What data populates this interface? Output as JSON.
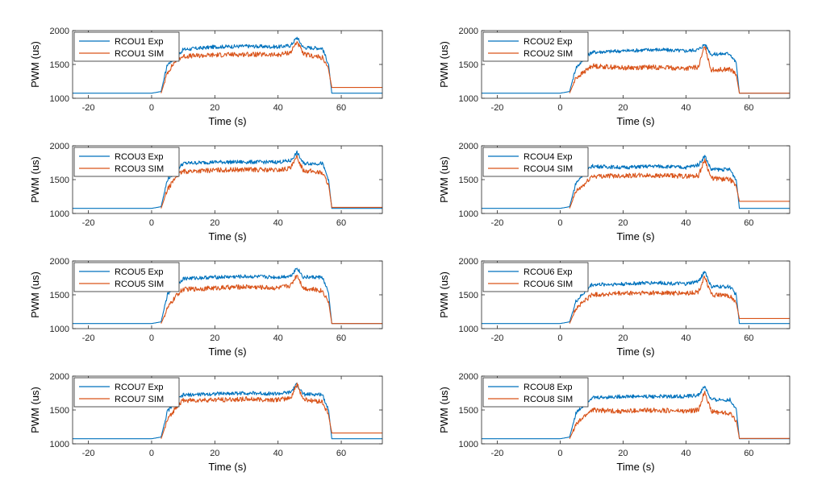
{
  "colors": {
    "exp": "#0072BD",
    "sim": "#D95319",
    "axis": "#262626"
  },
  "chart_data": [
    {
      "type": "line",
      "xlabel": "Time (s)",
      "ylabel": "PWM (us)",
      "xlim": [
        -25,
        73
      ],
      "ylim": [
        1000,
        2000
      ],
      "xticks": [
        "-20",
        "0",
        "20",
        "40",
        "60"
      ],
      "yticks": [
        "1000",
        "1500",
        "2000"
      ],
      "legend": "top-left",
      "series": [
        {
          "name": "RCOU1 Exp",
          "x": [
            -25,
            0,
            3,
            5,
            8,
            10,
            20,
            30,
            40,
            44,
            46,
            48,
            54,
            56,
            57,
            73
          ],
          "y": [
            1075,
            1075,
            1100,
            1500,
            1620,
            1720,
            1760,
            1770,
            1760,
            1780,
            1900,
            1750,
            1740,
            1500,
            1075,
            1075
          ]
        },
        {
          "name": "RCOU1 SIM",
          "x": [
            3,
            5,
            8,
            10,
            20,
            30,
            40,
            44,
            46,
            48,
            54,
            56,
            57,
            73
          ],
          "y": [
            1075,
            1380,
            1580,
            1620,
            1640,
            1650,
            1640,
            1680,
            1840,
            1650,
            1600,
            1420,
            1160,
            1160
          ]
        }
      ]
    },
    {
      "type": "line",
      "xlabel": "Time (s)",
      "ylabel": "PWM (us)",
      "xlim": [
        -25,
        73
      ],
      "ylim": [
        1000,
        2000
      ],
      "xticks": [
        "-20",
        "0",
        "20",
        "40",
        "60"
      ],
      "yticks": [
        "1000",
        "1500",
        "2000"
      ],
      "legend": "top-left",
      "series": [
        {
          "name": "RCOU2 Exp",
          "x": [
            -25,
            0,
            3,
            5,
            8,
            10,
            20,
            30,
            40,
            44,
            46,
            48,
            54,
            56,
            57,
            73
          ],
          "y": [
            1075,
            1075,
            1100,
            1450,
            1600,
            1680,
            1700,
            1720,
            1700,
            1720,
            1800,
            1650,
            1660,
            1520,
            1075,
            1075
          ]
        },
        {
          "name": "RCOU2 SIM",
          "x": [
            3,
            5,
            8,
            10,
            20,
            30,
            40,
            44,
            46,
            48,
            54,
            56,
            57,
            73
          ],
          "y": [
            1075,
            1300,
            1400,
            1480,
            1450,
            1460,
            1440,
            1460,
            1780,
            1420,
            1430,
            1350,
            1075,
            1075
          ]
        }
      ]
    },
    {
      "type": "line",
      "xlabel": "Time (s)",
      "ylabel": "PWM (us)",
      "xlim": [
        -25,
        73
      ],
      "ylim": [
        1000,
        2000
      ],
      "xticks": [
        "-20",
        "0",
        "20",
        "40",
        "60"
      ],
      "yticks": [
        "1000",
        "1500",
        "2000"
      ],
      "legend": "top-left",
      "series": [
        {
          "name": "RCOU3 Exp",
          "x": [
            -25,
            0,
            3,
            5,
            8,
            10,
            20,
            30,
            40,
            44,
            46,
            48,
            54,
            56,
            57,
            73
          ],
          "y": [
            1075,
            1075,
            1100,
            1500,
            1650,
            1740,
            1760,
            1760,
            1760,
            1780,
            1900,
            1740,
            1740,
            1500,
            1075,
            1075
          ]
        },
        {
          "name": "RCOU3 SIM",
          "x": [
            3,
            5,
            8,
            10,
            20,
            30,
            40,
            44,
            46,
            48,
            54,
            56,
            57,
            73
          ],
          "y": [
            1075,
            1350,
            1560,
            1620,
            1640,
            1650,
            1640,
            1670,
            1830,
            1640,
            1600,
            1430,
            1090,
            1090
          ]
        }
      ]
    },
    {
      "type": "line",
      "xlabel": "Time (s)",
      "ylabel": "PWM (us)",
      "xlim": [
        -25,
        73
      ],
      "ylim": [
        1000,
        2000
      ],
      "xticks": [
        "-20",
        "0",
        "20",
        "40",
        "60"
      ],
      "yticks": [
        "1000",
        "1500",
        "2000"
      ],
      "legend": "top-left",
      "series": [
        {
          "name": "RCOU4 Exp",
          "x": [
            -25,
            0,
            3,
            5,
            8,
            10,
            20,
            30,
            40,
            44,
            46,
            48,
            54,
            56,
            57,
            73
          ],
          "y": [
            1075,
            1075,
            1100,
            1450,
            1600,
            1700,
            1680,
            1700,
            1680,
            1720,
            1850,
            1650,
            1650,
            1500,
            1075,
            1075
          ]
        },
        {
          "name": "RCOU4 SIM",
          "x": [
            3,
            5,
            8,
            10,
            20,
            30,
            40,
            44,
            46,
            48,
            54,
            56,
            57,
            73
          ],
          "y": [
            1075,
            1320,
            1440,
            1550,
            1560,
            1560,
            1550,
            1560,
            1800,
            1520,
            1500,
            1400,
            1180,
            1180
          ]
        }
      ]
    },
    {
      "type": "line",
      "xlabel": "Time (s)",
      "ylabel": "PWM (us)",
      "xlim": [
        -25,
        73
      ],
      "ylim": [
        1000,
        2000
      ],
      "xticks": [
        "-20",
        "0",
        "20",
        "40",
        "60"
      ],
      "yticks": [
        "1000",
        "1500",
        "2000"
      ],
      "legend": "top-left",
      "series": [
        {
          "name": "RCOU5 Exp",
          "x": [
            -25,
            0,
            3,
            5,
            8,
            10,
            20,
            30,
            40,
            44,
            46,
            48,
            54,
            56,
            57,
            73
          ],
          "y": [
            1075,
            1075,
            1100,
            1500,
            1650,
            1740,
            1760,
            1770,
            1760,
            1780,
            1900,
            1760,
            1760,
            1520,
            1075,
            1075
          ]
        },
        {
          "name": "RCOU5 SIM",
          "x": [
            3,
            5,
            8,
            10,
            20,
            30,
            40,
            44,
            46,
            48,
            54,
            56,
            57,
            73
          ],
          "y": [
            1075,
            1300,
            1500,
            1580,
            1600,
            1620,
            1600,
            1640,
            1800,
            1600,
            1560,
            1400,
            1075,
            1075
          ]
        }
      ]
    },
    {
      "type": "line",
      "xlabel": "Time (s)",
      "ylabel": "PWM (us)",
      "xlim": [
        -25,
        73
      ],
      "ylim": [
        1000,
        2000
      ],
      "xticks": [
        "-20",
        "0",
        "20",
        "40",
        "60"
      ],
      "yticks": [
        "1000",
        "1500",
        "2000"
      ],
      "legend": "top-left",
      "series": [
        {
          "name": "RCOU6 Exp",
          "x": [
            -25,
            0,
            3,
            5,
            8,
            10,
            20,
            30,
            40,
            44,
            46,
            48,
            54,
            56,
            57,
            73
          ],
          "y": [
            1075,
            1075,
            1100,
            1400,
            1550,
            1650,
            1660,
            1680,
            1660,
            1700,
            1850,
            1620,
            1620,
            1500,
            1075,
            1075
          ]
        },
        {
          "name": "RCOU6 SIM",
          "x": [
            3,
            5,
            8,
            10,
            20,
            30,
            40,
            44,
            46,
            48,
            54,
            56,
            57,
            73
          ],
          "y": [
            1075,
            1300,
            1420,
            1500,
            1520,
            1530,
            1520,
            1540,
            1780,
            1500,
            1480,
            1380,
            1150,
            1150
          ]
        }
      ]
    },
    {
      "type": "line",
      "xlabel": "Time (s)",
      "ylabel": "PWM (us)",
      "xlim": [
        -25,
        73
      ],
      "ylim": [
        1000,
        2000
      ],
      "xticks": [
        "-20",
        "0",
        "20",
        "40",
        "60"
      ],
      "yticks": [
        "1000",
        "1500",
        "2000"
      ],
      "legend": "top-left",
      "series": [
        {
          "name": "RCOU7 Exp",
          "x": [
            -25,
            0,
            3,
            5,
            8,
            10,
            20,
            30,
            40,
            44,
            46,
            48,
            54,
            56,
            57,
            73
          ],
          "y": [
            1075,
            1075,
            1100,
            1480,
            1640,
            1720,
            1740,
            1750,
            1740,
            1760,
            1880,
            1730,
            1730,
            1500,
            1075,
            1075
          ]
        },
        {
          "name": "RCOU7 SIM",
          "x": [
            3,
            5,
            8,
            10,
            20,
            30,
            40,
            44,
            46,
            48,
            54,
            56,
            57,
            73
          ],
          "y": [
            1075,
            1350,
            1560,
            1640,
            1650,
            1660,
            1650,
            1680,
            1880,
            1660,
            1620,
            1420,
            1160,
            1160
          ]
        }
      ]
    },
    {
      "type": "line",
      "xlabel": "Time (s)",
      "ylabel": "PWM (us)",
      "xlim": [
        -25,
        73
      ],
      "ylim": [
        1000,
        2000
      ],
      "xticks": [
        "-20",
        "0",
        "20",
        "40",
        "60"
      ],
      "yticks": [
        "1000",
        "1500",
        "2000"
      ],
      "legend": "top-left",
      "series": [
        {
          "name": "RCOU8 Exp",
          "x": [
            -25,
            0,
            3,
            5,
            8,
            10,
            20,
            30,
            40,
            44,
            46,
            48,
            54,
            56,
            57,
            73
          ],
          "y": [
            1075,
            1075,
            1100,
            1450,
            1600,
            1680,
            1700,
            1700,
            1700,
            1720,
            1850,
            1650,
            1650,
            1520,
            1075,
            1075
          ]
        },
        {
          "name": "RCOU8 SIM",
          "x": [
            3,
            5,
            8,
            10,
            20,
            30,
            40,
            44,
            46,
            48,
            54,
            56,
            57,
            73
          ],
          "y": [
            1075,
            1280,
            1420,
            1500,
            1480,
            1500,
            1480,
            1500,
            1780,
            1480,
            1450,
            1350,
            1080,
            1080
          ]
        }
      ]
    }
  ]
}
